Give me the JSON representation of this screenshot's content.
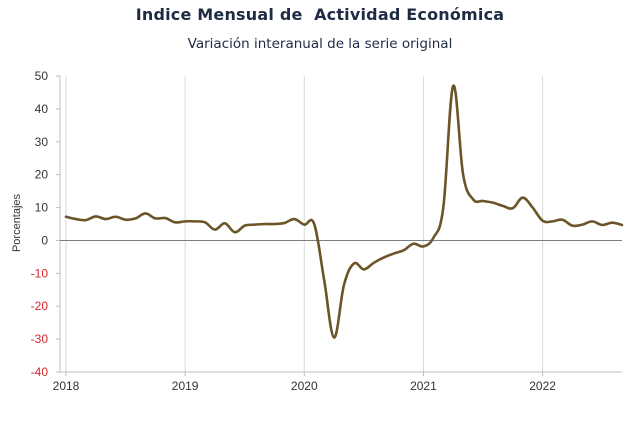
{
  "chart_data": {
    "type": "line",
    "title": "Indice Mensual de  Actividad Económica",
    "subtitle": "Variación interanual de la serie original",
    "xlabel": "",
    "ylabel": "Porcentajes",
    "ylim": [
      -40,
      50
    ],
    "yticks": [
      50,
      40,
      30,
      20,
      10,
      0,
      -10,
      -20,
      -30,
      -40
    ],
    "xlim": [
      "2018-01",
      "2022-09"
    ],
    "xticks": [
      "2018",
      "2019",
      "2020",
      "2021",
      "2022"
    ],
    "grid": "vertical",
    "legend": "none",
    "line_color": "#6b5428",
    "negative_tick_color": "#d9262c",
    "series": [
      {
        "x": [
          "2018-01",
          "2018-02",
          "2018-03",
          "2018-04",
          "2018-05",
          "2018-06",
          "2018-07",
          "2018-08",
          "2018-09",
          "2018-10",
          "2018-11",
          "2018-12",
          "2019-01",
          "2019-02",
          "2019-03",
          "2019-04",
          "2019-05",
          "2019-06",
          "2019-07",
          "2019-08",
          "2019-09",
          "2019-10",
          "2019-11",
          "2019-12",
          "2020-01",
          "2020-02",
          "2020-03",
          "2020-04",
          "2020-05",
          "2020-06",
          "2020-07",
          "2020-08",
          "2020-09",
          "2020-10",
          "2020-11",
          "2020-12",
          "2021-01",
          "2021-02",
          "2021-03",
          "2021-04",
          "2021-05",
          "2021-06",
          "2021-07",
          "2021-08",
          "2021-09",
          "2021-10",
          "2021-11",
          "2021-12",
          "2022-01",
          "2022-02",
          "2022-03",
          "2022-04",
          "2022-05",
          "2022-06",
          "2022-07",
          "2022-08",
          "2022-09"
        ],
        "values": [
          7.2,
          6.5,
          6.2,
          7.3,
          6.5,
          7.2,
          6.3,
          6.7,
          8.2,
          6.7,
          6.8,
          5.5,
          5.8,
          5.8,
          5.5,
          3.3,
          5.2,
          2.5,
          4.5,
          4.8,
          5.0,
          5.0,
          5.3,
          6.5,
          4.8,
          5.0,
          -12.0,
          -29.5,
          -13.5,
          -7.0,
          -8.8,
          -6.8,
          -5.2,
          -4.0,
          -3.0,
          -1.0,
          -1.8,
          0.8,
          10.0,
          47.0,
          20.0,
          12.5,
          12.0,
          11.5,
          10.5,
          9.8,
          13.0,
          10.0,
          6.0,
          5.8,
          6.3,
          4.5,
          4.8,
          5.8,
          4.7,
          5.4,
          4.7
        ]
      }
    ]
  }
}
